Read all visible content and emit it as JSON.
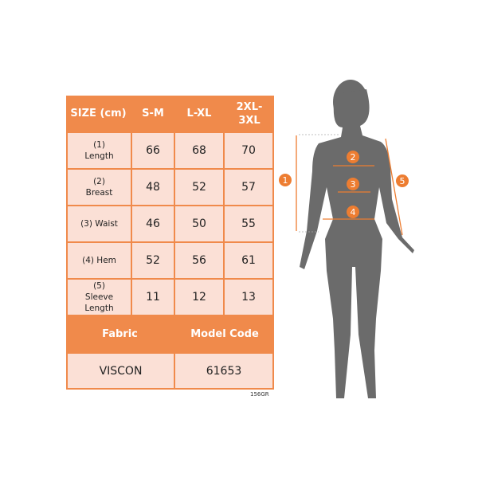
{
  "table": {
    "headers": [
      "SIZE (cm)",
      "S-M",
      "L-XL",
      "2XL-3XL"
    ],
    "rows": [
      {
        "label": "(1) Length",
        "values": [
          "66",
          "68",
          "70"
        ]
      },
      {
        "label": "(2) Breast",
        "values": [
          "48",
          "52",
          "57"
        ]
      },
      {
        "label": "(3) Waist",
        "values": [
          "46",
          "50",
          "55"
        ]
      },
      {
        "label": "(4) Hem",
        "values": [
          "52",
          "56",
          "61"
        ]
      },
      {
        "label": "(5) Sleeve Length",
        "values": [
          "11",
          "12",
          "13"
        ]
      }
    ],
    "fabric_label": "Fabric",
    "model_code_label": "Model Code",
    "fabric": "VISCON",
    "model_code": "61653"
  },
  "code": "156GR",
  "markers": [
    "1",
    "2",
    "3",
    "4",
    "5"
  ],
  "colors": {
    "accent": "#ED7D31",
    "cell": "#FBE0D6",
    "silhouette": "#6b6b6b"
  }
}
